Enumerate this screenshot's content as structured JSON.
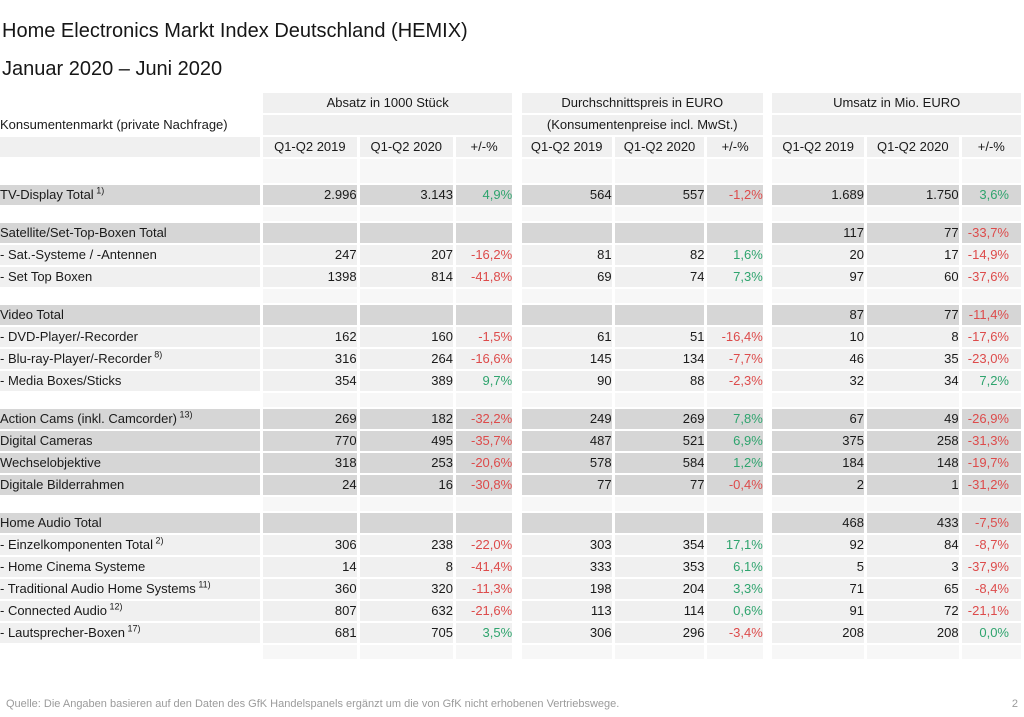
{
  "title": "Home Electronics Markt Index Deutschland (HEMIX)",
  "subtitle": "Januar 2020 – Juni 2020",
  "colors": {
    "positive": "#2fa46e",
    "negative": "#dd4b4b"
  },
  "table": {
    "row_header": "Konsumentenmarkt (private Nachfrage)",
    "groups": [
      {
        "title": "Absatz in 1000 Stück",
        "subtitle": ""
      },
      {
        "title": "Durchschnittspreis in EURO",
        "subtitle": "(Konsumentenpreise incl. MwSt.)"
      },
      {
        "title": "Umsatz in Mio. EURO",
        "subtitle": ""
      }
    ],
    "period_columns": [
      "Q1-Q2 2019",
      "Q1-Q2 2020",
      "+/-%"
    ],
    "rows": [
      {
        "type": "spacer_tall"
      },
      {
        "type": "total",
        "label": "TV-Display Total",
        "sup": "1)",
        "a": [
          "2.996",
          "3.143",
          "4,9%"
        ],
        "p": [
          "564",
          "557",
          "-1,2%"
        ],
        "u": [
          "1.689",
          "1.750",
          "3,6%"
        ]
      },
      {
        "type": "spacer"
      },
      {
        "type": "total",
        "label": "Satellite/Set-Top-Boxen Total",
        "sup": "",
        "a": [
          "",
          "",
          ""
        ],
        "p": [
          "",
          "",
          ""
        ],
        "u": [
          "117",
          "77",
          "-33,7%"
        ]
      },
      {
        "type": "item",
        "label": "- Sat.-Systeme / -Antennen",
        "sup": "",
        "a": [
          "247",
          "207",
          "-16,2%"
        ],
        "p": [
          "81",
          "82",
          "1,6%"
        ],
        "u": [
          "20",
          "17",
          "-14,9%"
        ]
      },
      {
        "type": "item",
        "label": "- Set Top Boxen",
        "sup": "",
        "a": [
          "1398",
          "814",
          "-41,8%"
        ],
        "p": [
          "69",
          "74",
          "7,3%"
        ],
        "u": [
          "97",
          "60",
          "-37,6%"
        ]
      },
      {
        "type": "spacer"
      },
      {
        "type": "total",
        "label": "Video Total",
        "sup": "",
        "a": [
          "",
          "",
          ""
        ],
        "p": [
          "",
          "",
          ""
        ],
        "u": [
          "87",
          "77",
          "-11,4%"
        ]
      },
      {
        "type": "item",
        "label": "- DVD-Player/-Recorder",
        "sup": "",
        "a": [
          "162",
          "160",
          "-1,5%"
        ],
        "p": [
          "61",
          "51",
          "-16,4%"
        ],
        "u": [
          "10",
          "8",
          "-17,6%"
        ]
      },
      {
        "type": "item",
        "label": "- Blu-ray-Player/-Recorder",
        "sup": "8)",
        "a": [
          "316",
          "264",
          "-16,6%"
        ],
        "p": [
          "145",
          "134",
          "-7,7%"
        ],
        "u": [
          "46",
          "35",
          "-23,0%"
        ]
      },
      {
        "type": "item",
        "label": "- Media Boxes/Sticks",
        "sup": "",
        "a": [
          "354",
          "389",
          "9,7%"
        ],
        "p": [
          "90",
          "88",
          "-2,3%"
        ],
        "u": [
          "32",
          "34",
          "7,2%"
        ]
      },
      {
        "type": "spacer"
      },
      {
        "type": "total",
        "label": "Action Cams (inkl. Camcorder)",
        "sup": "13)",
        "a": [
          "269",
          "182",
          "-32,2%"
        ],
        "p": [
          "249",
          "269",
          "7,8%"
        ],
        "u": [
          "67",
          "49",
          "-26,9%"
        ]
      },
      {
        "type": "total",
        "label": "Digital Cameras",
        "sup": "",
        "a": [
          "770",
          "495",
          "-35,7%"
        ],
        "p": [
          "487",
          "521",
          "6,9%"
        ],
        "u": [
          "375",
          "258",
          "-31,3%"
        ]
      },
      {
        "type": "total",
        "label": "Wechselobjektive",
        "sup": "",
        "a": [
          "318",
          "253",
          "-20,6%"
        ],
        "p": [
          "578",
          "584",
          "1,2%"
        ],
        "u": [
          "184",
          "148",
          "-19,7%"
        ]
      },
      {
        "type": "total",
        "label": "Digitale Bilderrahmen",
        "sup": "",
        "a": [
          "24",
          "16",
          "-30,8%"
        ],
        "p": [
          "77",
          "77",
          "-0,4%"
        ],
        "u": [
          "2",
          "1",
          "-31,2%"
        ]
      },
      {
        "type": "spacer"
      },
      {
        "type": "total",
        "label": "Home Audio Total",
        "sup": "",
        "a": [
          "",
          "",
          ""
        ],
        "p": [
          "",
          "",
          ""
        ],
        "u": [
          "468",
          "433",
          "-7,5%"
        ]
      },
      {
        "type": "item",
        "label": "- Einzelkomponenten Total",
        "sup": "2)",
        "a": [
          "306",
          "238",
          "-22,0%"
        ],
        "p": [
          "303",
          "354",
          "17,1%"
        ],
        "u": [
          "92",
          "84",
          "-8,7%"
        ]
      },
      {
        "type": "item",
        "label": "- Home Cinema Systeme",
        "sup": "",
        "a": [
          "14",
          "8",
          "-41,4%"
        ],
        "p": [
          "333",
          "353",
          "6,1%"
        ],
        "u": [
          "5",
          "3",
          "-37,9%"
        ]
      },
      {
        "type": "item",
        "label": "- Traditional Audio Home Systems",
        "sup": "11)",
        "a": [
          "360",
          "320",
          "-11,3%"
        ],
        "p": [
          "198",
          "204",
          "3,3%"
        ],
        "u": [
          "71",
          "65",
          "-8,4%"
        ]
      },
      {
        "type": "item",
        "label": "- Connected Audio",
        "sup": "12)",
        "a": [
          "807",
          "632",
          "-21,6%"
        ],
        "p": [
          "113",
          "114",
          "0,6%"
        ],
        "u": [
          "91",
          "72",
          "-21,1%"
        ]
      },
      {
        "type": "item",
        "label": "- Lautsprecher-Boxen",
        "sup": "17)",
        "a": [
          "681",
          "705",
          "3,5%"
        ],
        "p": [
          "306",
          "296",
          "-3,4%"
        ],
        "u": [
          "208",
          "208",
          "0,0%"
        ]
      },
      {
        "type": "spacer"
      }
    ]
  },
  "footer": {
    "source": "Quelle: Die Angaben basieren auf den Daten des GfK Handelspanels ergänzt um die von GfK nicht erhobenen Vertriebswege.",
    "page": "2"
  }
}
